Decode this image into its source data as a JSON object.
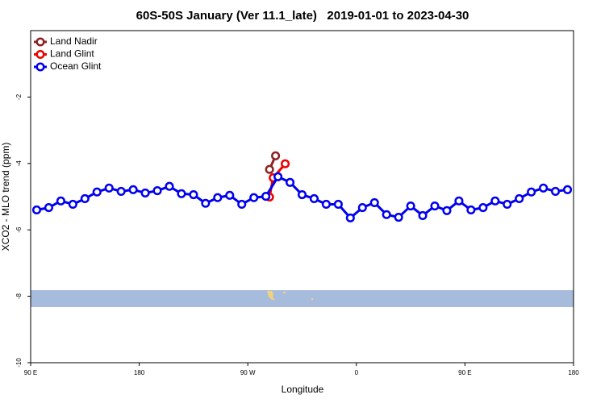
{
  "chart_data": {
    "type": "line",
    "title": "60S-50S January (Ver 11.1_late)   2019-01-01 to 2023-04-30",
    "xlabel": "Longitude",
    "ylabel": "XCO2 - MLO trend (ppm)",
    "xlim": [
      90,
      540
    ],
    "ylim": [
      -10,
      0
    ],
    "xticks": [
      {
        "value": 90,
        "label": "90 E"
      },
      {
        "value": 180,
        "label": "180"
      },
      {
        "value": 270,
        "label": "90 W"
      },
      {
        "value": 360,
        "label": "0"
      },
      {
        "value": 450,
        "label": "90 E"
      },
      {
        "value": 540,
        "label": "180"
      }
    ],
    "yticks": [
      -10,
      -8,
      -6,
      -4,
      -2
    ],
    "legend": "upper left",
    "series": [
      {
        "name": "Land Nadir",
        "color": "#8b2323",
        "x": [
          288,
          293
        ],
        "values": [
          -4.18,
          -3.77
        ]
      },
      {
        "name": "Land Glint",
        "color": "#ee0000",
        "x": [
          288,
          291,
          301
        ],
        "values": [
          -5.01,
          -4.43,
          -4.01
        ]
      },
      {
        "name": "Ocean Glint",
        "color": "#0000ee",
        "x": [
          95,
          105,
          115,
          125,
          135,
          145,
          155,
          165,
          175,
          185,
          195,
          205,
          215,
          225,
          235,
          245,
          255,
          265,
          275,
          285,
          295,
          305,
          315,
          325,
          335,
          345,
          355,
          365,
          375,
          385,
          395,
          405,
          415,
          425,
          435,
          445,
          455,
          465,
          475,
          485,
          495,
          505,
          515,
          525,
          535
        ],
        "values": [
          -5.4,
          -5.33,
          -5.13,
          -5.23,
          -5.06,
          -4.86,
          -4.74,
          -4.84,
          -4.79,
          -4.89,
          -4.82,
          -4.69,
          -4.91,
          -4.94,
          -5.2,
          -5.03,
          -4.96,
          -5.23,
          -5.03,
          -4.99,
          -4.4,
          -4.57,
          -4.94,
          -5.06,
          -5.23,
          -5.23,
          -5.64,
          -5.33,
          -5.18,
          -5.54,
          -5.62,
          -5.28,
          -5.57,
          -5.28,
          -5.42,
          -5.13,
          -5.4,
          -5.33,
          -5.13,
          -5.23,
          -5.06,
          -4.86,
          -4.74,
          -4.84,
          -4.79
        ]
      }
    ]
  }
}
